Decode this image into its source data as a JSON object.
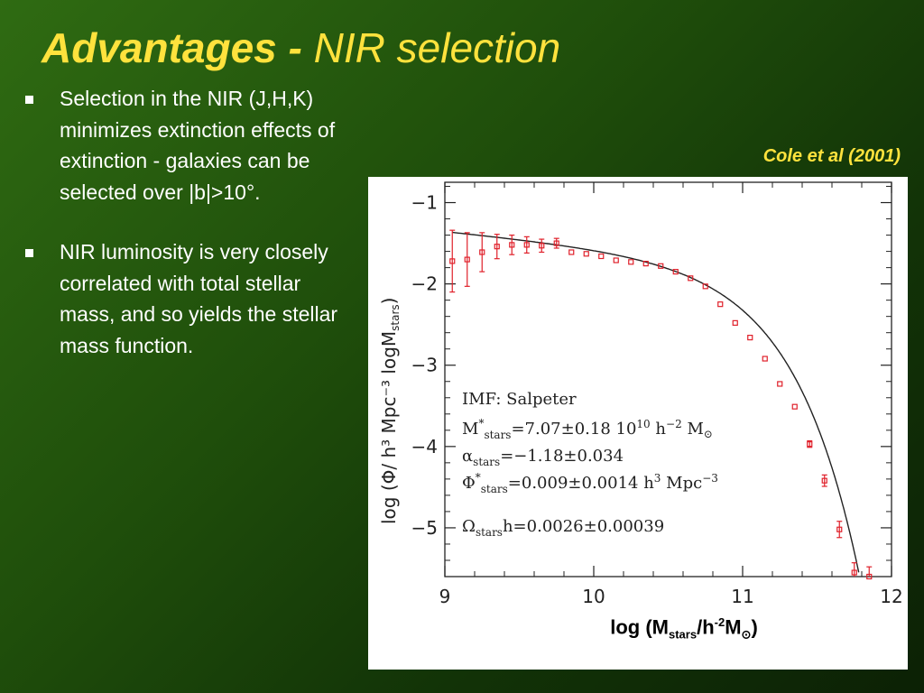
{
  "slide": {
    "title_bold": "Advantages -",
    "title_rest": "NIR selection",
    "citation": "Cole et al (2001)",
    "bullets": [
      "Selection in the NIR (J,H,K) minimizes extinction effects of extinction - galaxies can be selected over |b|>10°.",
      "NIR luminosity is very closely correlated with total stellar mass, and so yields the stellar mass function."
    ],
    "colors": {
      "title": "#ffe23d",
      "background": "#1f4e0b",
      "data_points": "#e0202a"
    }
  },
  "chart_data": {
    "type": "scatter",
    "xlabel_parts": [
      "log (M",
      "stars",
      "/h",
      "-2",
      "M",
      "⊙",
      ")"
    ],
    "ylabel_parts": [
      "log (Φ/ h³ Mpc⁻³ logM",
      "stars",
      ")"
    ],
    "xlim": [
      9,
      12
    ],
    "ylim": [
      -5.6,
      -0.75
    ],
    "x_ticks": [
      9,
      10,
      11,
      12
    ],
    "x_tick_labels": [
      "9",
      "10",
      "11",
      "12"
    ],
    "y_ticks": [
      -1,
      -2,
      -3,
      -4,
      -5
    ],
    "y_tick_labels": [
      "−1",
      "−2",
      "−3",
      "−4",
      "−5"
    ],
    "grid": false,
    "annotation_lines": [
      [
        "IMF: Salpeter"
      ],
      [
        "M",
        "*",
        "stars",
        "=7.07±0.18  10",
        "10",
        " h",
        "−2",
        " M",
        "⊙"
      ],
      [
        "α",
        "",
        "stars",
        "=−1.18±0.034"
      ],
      [
        "Φ",
        "*",
        "stars",
        "=0.009±0.0014 h",
        "3",
        " Mpc",
        "−3"
      ],
      [
        "Ω",
        "",
        "stars",
        "h=0.0026±0.00039"
      ]
    ],
    "series": [
      {
        "kind": "points_with_errors",
        "x": [
          9.05,
          9.15,
          9.25,
          9.35,
          9.45,
          9.55,
          9.65,
          9.75,
          9.85,
          9.95,
          10.05,
          10.15,
          10.25,
          10.35,
          10.45,
          10.55,
          10.65,
          10.75,
          10.85,
          10.95,
          11.05,
          11.15,
          11.25,
          11.35,
          11.45,
          11.55,
          11.65,
          11.75,
          11.85
        ],
        "y": [
          -1.72,
          -1.7,
          -1.61,
          -1.54,
          -1.52,
          -1.52,
          -1.53,
          -1.5,
          -1.61,
          -1.63,
          -1.66,
          -1.71,
          -1.73,
          -1.75,
          -1.78,
          -1.85,
          -1.93,
          -2.03,
          -2.25,
          -2.48,
          -2.66,
          -2.92,
          -3.23,
          -3.51,
          -3.97,
          -4.42,
          -5.02,
          -5.55,
          -5.6
        ],
        "err": [
          0.38,
          0.33,
          0.24,
          0.15,
          0.12,
          0.1,
          0.08,
          0.06,
          0.03,
          0.03,
          0.03,
          0.03,
          0.03,
          0.03,
          0.03,
          0.03,
          0.03,
          0.03,
          0.03,
          0.03,
          0.03,
          0.03,
          0.03,
          0.03,
          0.04,
          0.07,
          0.1,
          0.12,
          0.12
        ]
      },
      {
        "kind": "schechter_curve",
        "log_mstar": 10.85,
        "alpha": -1.18,
        "phistar": 0.009,
        "x_range": [
          9.05,
          11.78
        ]
      }
    ]
  }
}
